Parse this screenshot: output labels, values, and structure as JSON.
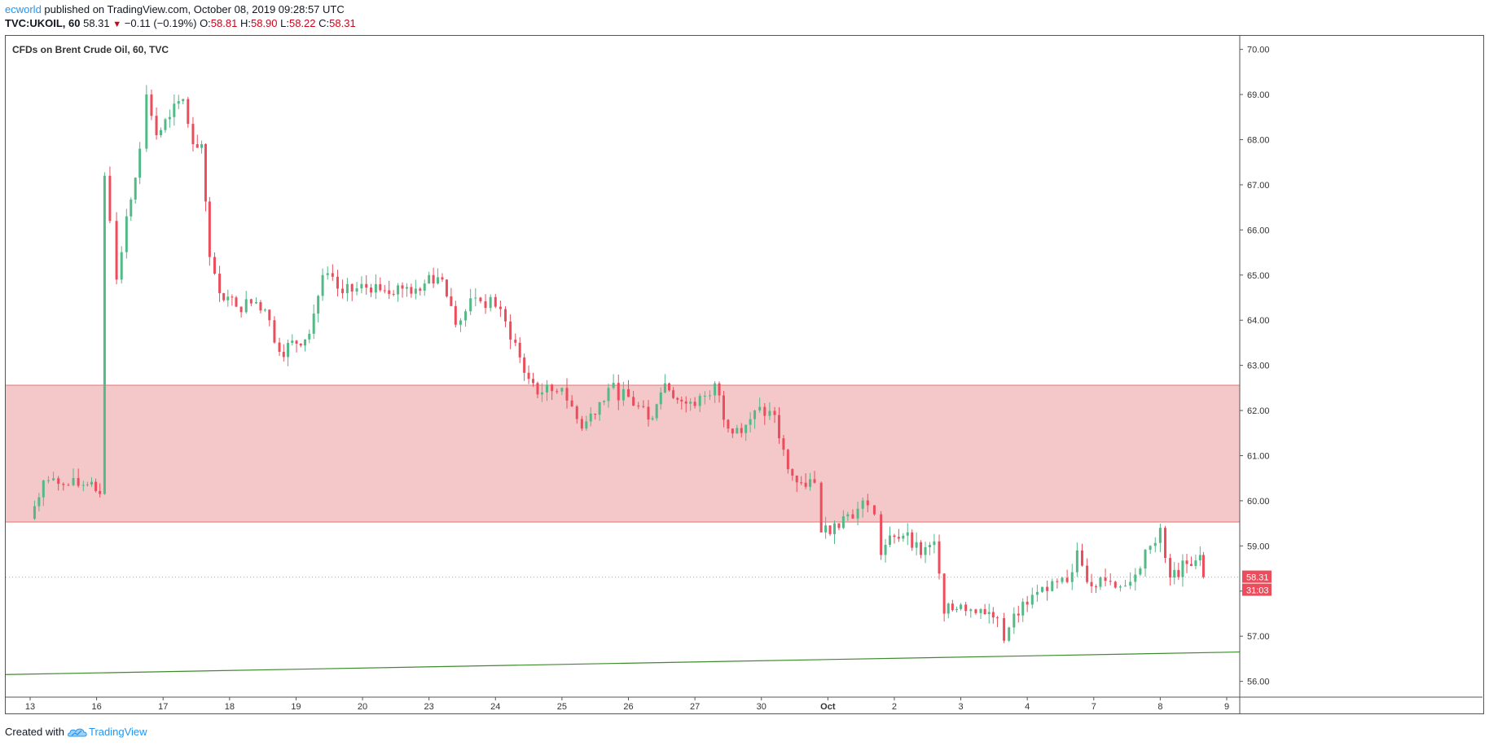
{
  "header": {
    "author": "ecworld",
    "published": "published on TradingView.com, October 08, 2019 09:28:57 UTC",
    "symbol": "TVC:UKOIL, 60",
    "last": "58.31",
    "change": "−0.11 (−0.19%)",
    "o_label": "O:",
    "o_value": "58.81",
    "h_label": "H:",
    "h_value": "58.90",
    "l_label": "L:",
    "l_value": "58.22",
    "c_label": "C:",
    "c_value": "58.31"
  },
  "footer": {
    "created_with": "Created with",
    "brand": "TradingView"
  },
  "colors": {
    "up": "#53b987",
    "down": "#eb4d5c",
    "zone_fill": "#f4c7c9",
    "zone_line": "#e57373",
    "trend": "#3f8a2e",
    "axis_text": "#333333",
    "header_red": "#d0021b"
  },
  "icons": {
    "direction": "triangle-down-icon",
    "brand_logo": "tradingview-cloud-icon"
  },
  "chart_data": {
    "type": "candlestick",
    "title": "CFDs on Brent Crude Oil, 60, TVC",
    "ylim": [
      55.65,
      70.3
    ],
    "yticks": [
      "56.00",
      "57.00",
      "58.00",
      "59.00",
      "60.00",
      "61.00",
      "62.00",
      "63.00",
      "64.00",
      "65.00",
      "66.00",
      "67.00",
      "68.00",
      "69.00",
      "70.00"
    ],
    "xticks": [
      "13",
      "16",
      "17",
      "18",
      "19",
      "20",
      "23",
      "24",
      "25",
      "26",
      "27",
      "30",
      "Oct",
      "2",
      "3",
      "4",
      "7",
      "8",
      "9"
    ],
    "price_label": "58.31",
    "countdown_label": "31:03",
    "zone": {
      "from": 59.53,
      "to": 62.56
    },
    "trendline": {
      "start": 56.15,
      "end": 56.65
    },
    "price_path": [
      {
        "x": 0.0,
        "y": 59.6
      },
      {
        "x": 0.2,
        "y": 60.45
      },
      {
        "x": 0.5,
        "y": 60.35
      },
      {
        "x": 0.8,
        "y": 60.35
      },
      {
        "x": 1.05,
        "y": 60.15
      },
      {
        "x": 1.12,
        "y": 67.2
      },
      {
        "x": 1.2,
        "y": 66.2
      },
      {
        "x": 1.3,
        "y": 64.9
      },
      {
        "x": 1.45,
        "y": 66.3
      },
      {
        "x": 1.65,
        "y": 67.8
      },
      {
        "x": 1.75,
        "y": 69.0
      },
      {
        "x": 1.9,
        "y": 68.1
      },
      {
        "x": 2.1,
        "y": 68.5
      },
      {
        "x": 2.3,
        "y": 68.9
      },
      {
        "x": 2.45,
        "y": 67.9
      },
      {
        "x": 2.58,
        "y": 67.9
      },
      {
        "x": 2.7,
        "y": 65.4
      },
      {
        "x": 2.85,
        "y": 64.6
      },
      {
        "x": 3.1,
        "y": 64.3
      },
      {
        "x": 3.4,
        "y": 64.4
      },
      {
        "x": 3.6,
        "y": 64.0
      },
      {
        "x": 3.75,
        "y": 63.3
      },
      {
        "x": 4.2,
        "y": 63.7
      },
      {
        "x": 4.4,
        "y": 65.0
      },
      {
        "x": 4.7,
        "y": 64.6
      },
      {
        "x": 5.2,
        "y": 64.8
      },
      {
        "x": 5.6,
        "y": 64.7
      },
      {
        "x": 5.8,
        "y": 64.7
      },
      {
        "x": 6.0,
        "y": 65.0
      },
      {
        "x": 6.2,
        "y": 64.9
      },
      {
        "x": 6.4,
        "y": 63.9
      },
      {
        "x": 6.7,
        "y": 64.5
      },
      {
        "x": 7.0,
        "y": 64.3
      },
      {
        "x": 7.3,
        "y": 63.5
      },
      {
        "x": 7.5,
        "y": 62.7
      },
      {
        "x": 7.7,
        "y": 62.4
      },
      {
        "x": 8.0,
        "y": 62.5
      },
      {
        "x": 8.3,
        "y": 61.6
      },
      {
        "x": 8.7,
        "y": 62.5
      },
      {
        "x": 9.0,
        "y": 62.3
      },
      {
        "x": 9.3,
        "y": 61.8
      },
      {
        "x": 9.55,
        "y": 62.6
      },
      {
        "x": 9.8,
        "y": 62.2
      },
      {
        "x": 10.0,
        "y": 62.1
      },
      {
        "x": 10.3,
        "y": 62.6
      },
      {
        "x": 10.5,
        "y": 61.6
      },
      {
        "x": 10.7,
        "y": 61.5
      },
      {
        "x": 10.9,
        "y": 62.0
      },
      {
        "x": 11.2,
        "y": 61.9
      },
      {
        "x": 11.4,
        "y": 60.7
      },
      {
        "x": 11.6,
        "y": 60.4
      },
      {
        "x": 11.8,
        "y": 60.4
      },
      {
        "x": 11.9,
        "y": 59.3
      },
      {
        "x": 12.1,
        "y": 59.5
      },
      {
        "x": 12.3,
        "y": 59.7
      },
      {
        "x": 12.6,
        "y": 59.9
      },
      {
        "x": 12.7,
        "y": 59.7
      },
      {
        "x": 12.8,
        "y": 58.8
      },
      {
        "x": 13.0,
        "y": 59.2
      },
      {
        "x": 13.2,
        "y": 59.3
      },
      {
        "x": 13.4,
        "y": 58.8
      },
      {
        "x": 13.6,
        "y": 59.1
      },
      {
        "x": 13.75,
        "y": 57.5
      },
      {
        "x": 14.0,
        "y": 57.7
      },
      {
        "x": 14.3,
        "y": 57.6
      },
      {
        "x": 14.55,
        "y": 57.4
      },
      {
        "x": 14.65,
        "y": 56.9
      },
      {
        "x": 14.8,
        "y": 57.5
      },
      {
        "x": 15.0,
        "y": 57.7
      },
      {
        "x": 15.3,
        "y": 58.0
      },
      {
        "x": 15.6,
        "y": 58.2
      },
      {
        "x": 15.75,
        "y": 58.9
      },
      {
        "x": 15.9,
        "y": 58.2
      },
      {
        "x": 16.1,
        "y": 58.3
      },
      {
        "x": 16.4,
        "y": 58.1
      },
      {
        "x": 16.7,
        "y": 58.5
      },
      {
        "x": 16.85,
        "y": 59.0
      },
      {
        "x": 17.0,
        "y": 59.4
      },
      {
        "x": 17.15,
        "y": 58.3
      },
      {
        "x": 17.4,
        "y": 58.6
      },
      {
        "x": 17.6,
        "y": 58.8
      },
      {
        "x": 17.65,
        "y": 58.31
      }
    ]
  }
}
